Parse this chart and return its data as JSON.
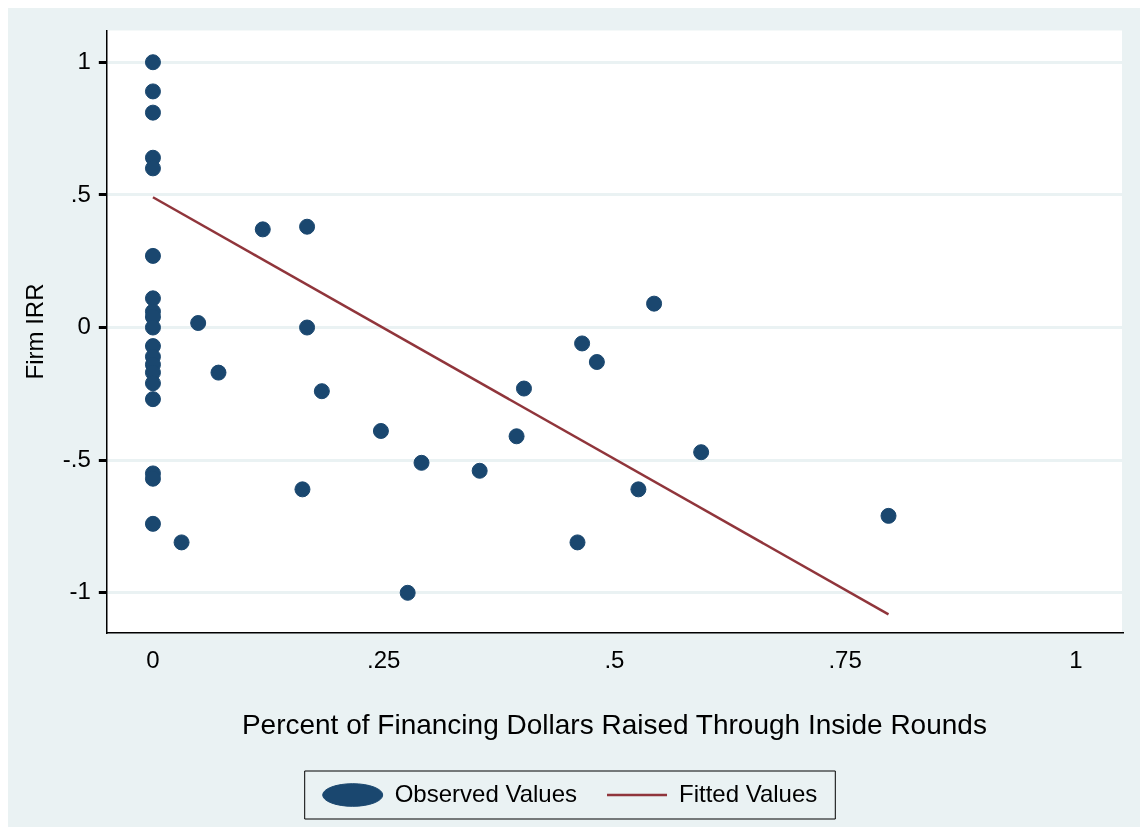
{
  "chart_data": {
    "type": "scatter",
    "xlabel": "Percent of Financing Dollars Raised Through Inside Rounds",
    "ylabel": "Firm IRR",
    "xlim": [
      -0.05,
      1.05
    ],
    "ylim": [
      -1.15,
      1.12
    ],
    "xticks": [
      0,
      {
        "value": 0.25,
        "label": ".25"
      },
      {
        "value": 0.5,
        "label": ".5"
      },
      {
        "value": 0.75,
        "label": ".75"
      },
      1
    ],
    "yticks": [
      -1,
      {
        "value": -0.5,
        "label": "-.5"
      },
      0,
      {
        "value": 0.5,
        "label": ".5"
      },
      1
    ],
    "grid": "y",
    "legend": "bottom",
    "series": [
      {
        "name": "Observed Values",
        "type": "scatter",
        "color": "#1a476f",
        "marker": "circle",
        "x": [
          0,
          0,
          0,
          0,
          0,
          0,
          0,
          0,
          0,
          0,
          0,
          0,
          0,
          0,
          0,
          0,
          0,
          0,
          0,
          0.049,
          0.071,
          0.031,
          0.119,
          0.167,
          0.167,
          0.183,
          0.162,
          0.247,
          0.291,
          0.276,
          0.354,
          0.394,
          0.402,
          0.465,
          0.481,
          0.46,
          0.543,
          0.526,
          0.594,
          0.797
        ],
        "values": [
          1.0,
          0.89,
          0.81,
          0.64,
          0.6,
          0.27,
          0.11,
          0.06,
          0.04,
          0.0,
          -0.07,
          -0.11,
          -0.14,
          -0.17,
          -0.21,
          -0.27,
          -0.55,
          -0.57,
          -0.74,
          0.017,
          -0.17,
          -0.81,
          0.37,
          0.38,
          0.0,
          -0.24,
          -0.61,
          -0.39,
          -0.51,
          -1.0,
          -0.54,
          -0.41,
          -0.23,
          -0.06,
          -0.13,
          -0.81,
          0.09,
          -0.61,
          -0.47,
          -0.71
        ]
      },
      {
        "name": "Fitted Values",
        "type": "line",
        "color": "#90353b",
        "x": [
          0,
          0.797
        ],
        "values": [
          0.491,
          -1.081
        ]
      }
    ]
  }
}
